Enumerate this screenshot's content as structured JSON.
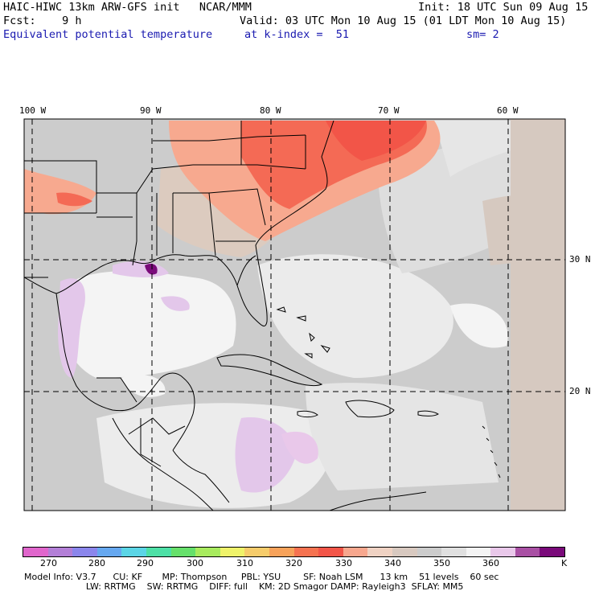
{
  "header": {
    "model_line": "HAIC-HIWC 13km ARW-GFS init   NCAR/MMM",
    "init_line": "Init: 18 UTC Sun 09 Aug 15",
    "fcst_line": "Fcst:    9 h",
    "valid_line": "Valid: 03 UTC Mon 10 Aug 15 (01 LDT Mon 10 Aug 15)",
    "field_name": "Equivalent potential temperature",
    "level_line": "at k-index =  51",
    "smooth_line": "sm= 2"
  },
  "map": {
    "lon_labels": [
      "100 W",
      "90 W",
      "80 W",
      "70 W",
      "60 W"
    ],
    "lat_labels": [
      "30 N",
      "20 N"
    ],
    "colors": {
      "land_outline": "#000000",
      "grid": "#000000",
      "background_gray": "#cccccc",
      "light_gray": "#e8e8e8",
      "tan": "#d7c8be",
      "warm": "#f7a98f",
      "hot": "#f46a55",
      "lavender": "#e3c7ea"
    }
  },
  "colorbar": {
    "unit": "K",
    "tick_labels": [
      "270",
      "280",
      "290",
      "300",
      "310",
      "320",
      "330",
      "340",
      "350",
      "360"
    ],
    "colors": [
      "#e066cc",
      "#b37fd7",
      "#8b86ec",
      "#66a8f0",
      "#5bd5e6",
      "#4de0a6",
      "#66e06b",
      "#a8eb5e",
      "#eff36a",
      "#f6cc6b",
      "#f7a25a",
      "#f57250",
      "#f25548",
      "#f7a78e",
      "#efd2c3",
      "#d8c9c0",
      "#cccccc",
      "#e0e0e0",
      "#f4f4f4",
      "#e9c8ea",
      "#a950a4",
      "#7a0a7a"
    ]
  },
  "footer": {
    "line1": "Model Info: V3.7      CU: KF       MP: Thompson     PBL: YSU        SF: Noah LSM      13 km    51 levels    60 sec",
    "line2": "                      LW: RRTMG    SW: RRTMG    DIFF: full    KM: 2D Smagor DAMP: Rayleigh3  SFLAY: MM5"
  }
}
